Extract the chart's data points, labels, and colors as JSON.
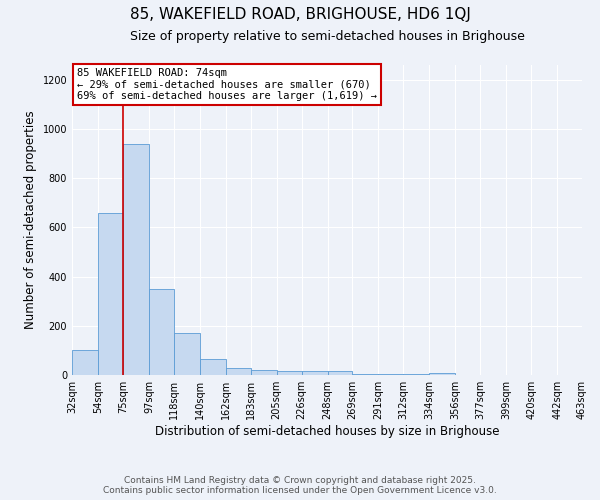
{
  "title": "85, WAKEFIELD ROAD, BRIGHOUSE, HD6 1QJ",
  "subtitle": "Size of property relative to semi-detached houses in Brighouse",
  "xlabel": "Distribution of semi-detached houses by size in Brighouse",
  "ylabel": "Number of semi-detached properties",
  "bin_edges": [
    32,
    54,
    75,
    97,
    118,
    140,
    162,
    183,
    205,
    226,
    248,
    269,
    291,
    312,
    334,
    356,
    377,
    399,
    420,
    442,
    463
  ],
  "bin_labels": [
    "32sqm",
    "54sqm",
    "75sqm",
    "97sqm",
    "118sqm",
    "140sqm",
    "162sqm",
    "183sqm",
    "205sqm",
    "226sqm",
    "248sqm",
    "269sqm",
    "291sqm",
    "312sqm",
    "334sqm",
    "356sqm",
    "377sqm",
    "399sqm",
    "420sqm",
    "442sqm",
    "463sqm"
  ],
  "bar_heights": [
    100,
    660,
    940,
    350,
    170,
    65,
    30,
    20,
    15,
    15,
    15,
    5,
    5,
    5,
    10,
    2,
    2,
    2,
    2,
    2
  ],
  "bar_color": "#c6d9f0",
  "bar_edge_color": "#5b9bd5",
  "property_line_x": 75,
  "property_line_color": "#cc0000",
  "annotation_text": "85 WAKEFIELD ROAD: 74sqm\n← 29% of semi-detached houses are smaller (670)\n69% of semi-detached houses are larger (1,619) →",
  "annotation_box_color": "#ffffff",
  "annotation_box_edge": "#cc0000",
  "ylim": [
    0,
    1260
  ],
  "yticks": [
    0,
    200,
    400,
    600,
    800,
    1000,
    1200
  ],
  "background_color": "#eef2f9",
  "grid_color": "#ffffff",
  "footer_line1": "Contains HM Land Registry data © Crown copyright and database right 2025.",
  "footer_line2": "Contains public sector information licensed under the Open Government Licence v3.0.",
  "title_fontsize": 11,
  "subtitle_fontsize": 9,
  "label_fontsize": 8.5,
  "tick_fontsize": 7,
  "annot_fontsize": 7.5,
  "footer_fontsize": 6.5
}
